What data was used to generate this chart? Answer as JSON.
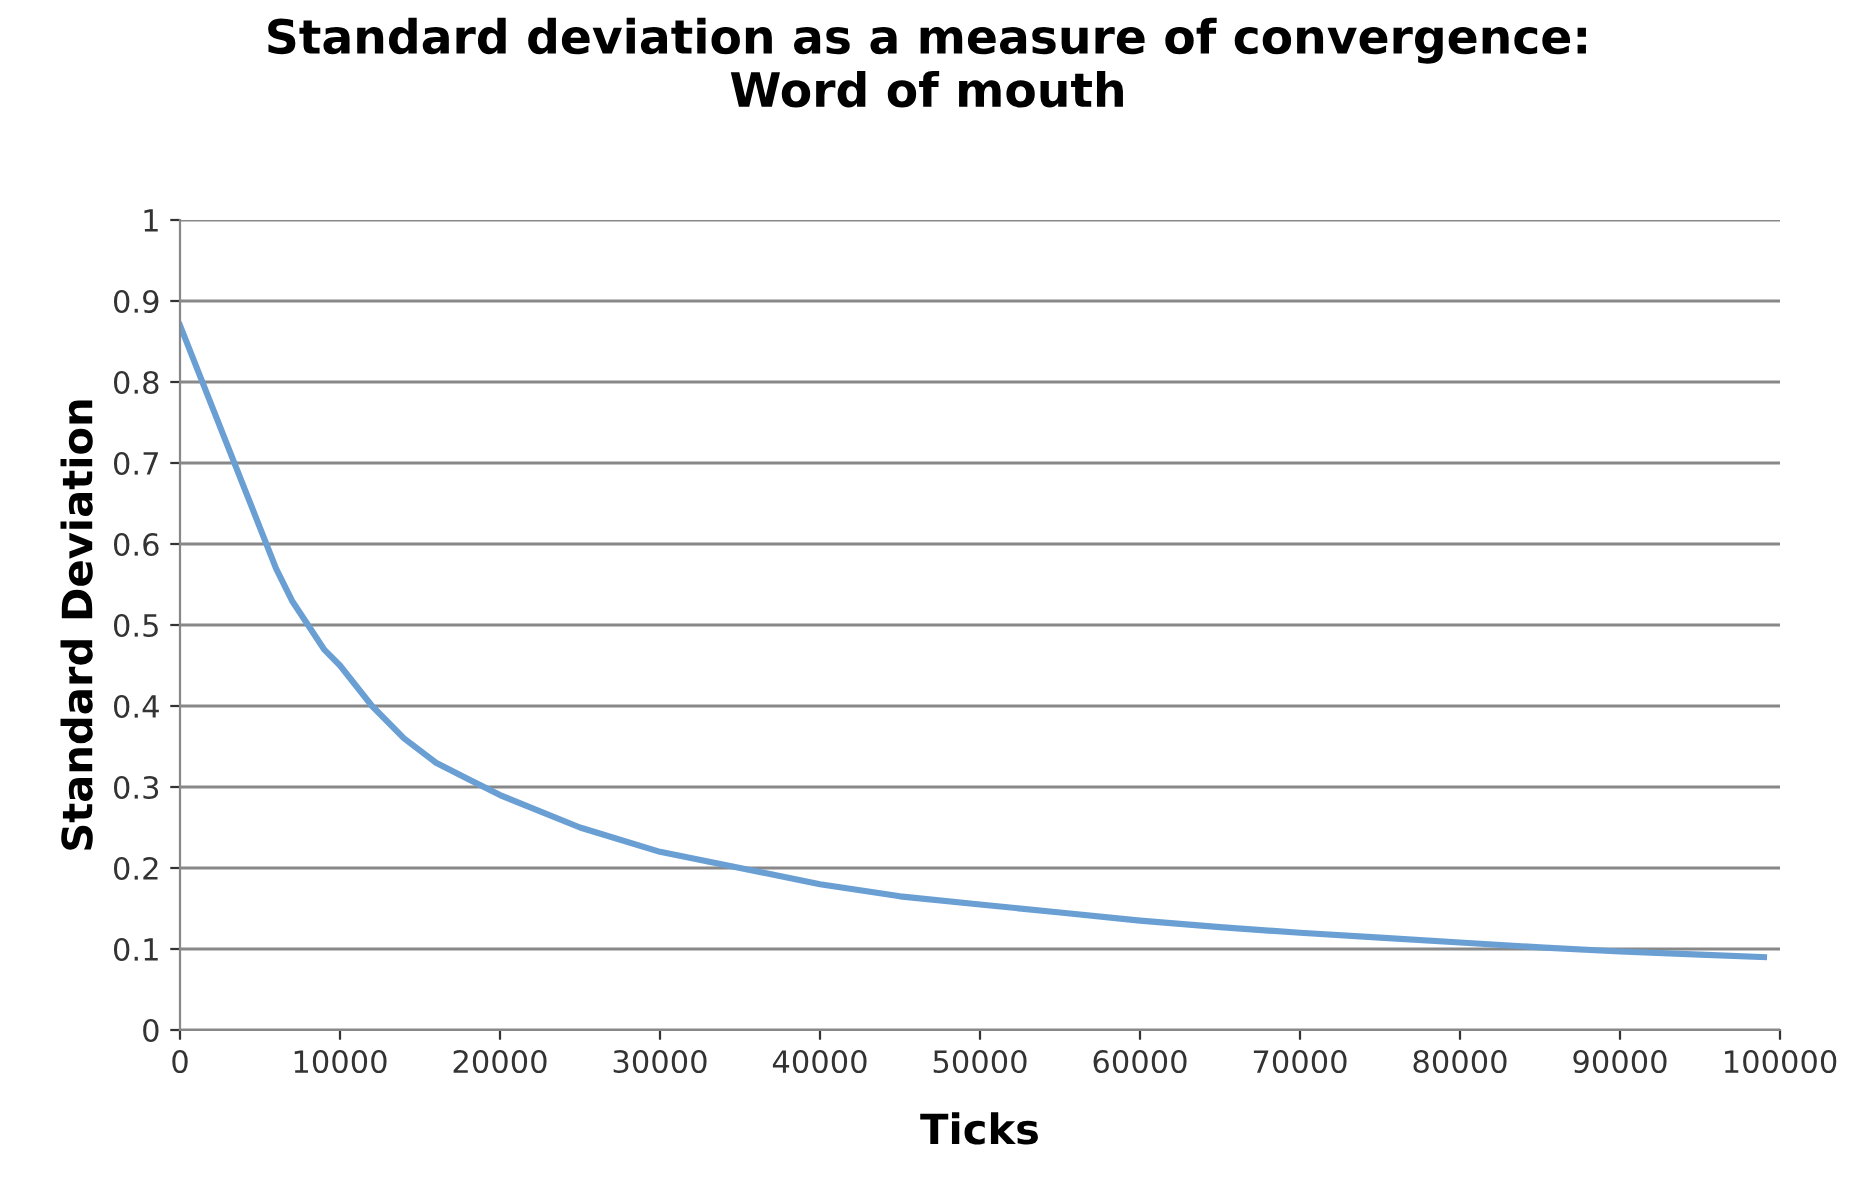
{
  "chart_data": {
    "type": "line",
    "title": "Standard deviation as a measure of convergence:\nWord of mouth",
    "xlabel": "Ticks",
    "ylabel": "Standard Deviation",
    "x": [
      0,
      1000,
      2000,
      3000,
      4000,
      5000,
      6000,
      7000,
      8000,
      9000,
      10000,
      12000,
      14000,
      16000,
      18000,
      20000,
      25000,
      30000,
      35000,
      40000,
      45000,
      50000,
      55000,
      60000,
      65000,
      70000,
      75000,
      80000,
      85000,
      90000,
      95000,
      99000
    ],
    "series": [
      {
        "color": "#6a9fd4",
        "values": [
          0.87,
          0.82,
          0.77,
          0.72,
          0.67,
          0.62,
          0.57,
          0.53,
          0.5,
          0.47,
          0.45,
          0.4,
          0.36,
          0.33,
          0.31,
          0.29,
          0.25,
          0.22,
          0.2,
          0.18,
          0.165,
          0.155,
          0.145,
          0.135,
          0.127,
          0.12,
          0.114,
          0.108,
          0.102,
          0.097,
          0.093,
          0.09
        ]
      }
    ],
    "xlim": [
      0,
      100000
    ],
    "xticks": [
      0,
      10000,
      20000,
      30000,
      40000,
      50000,
      60000,
      70000,
      80000,
      90000,
      100000
    ],
    "ylim": [
      0,
      1
    ],
    "yticks": [
      0,
      0.1,
      0.2,
      0.3,
      0.4,
      0.5,
      0.6,
      0.7,
      0.8,
      0.9,
      1
    ],
    "grid": "y",
    "marker": "none",
    "line_style": "solid"
  }
}
